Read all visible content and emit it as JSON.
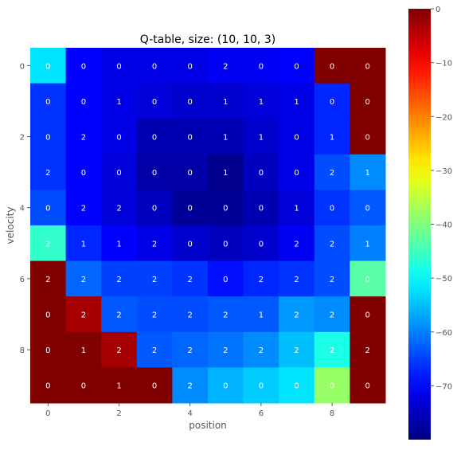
{
  "chart_data": {
    "type": "heatmap",
    "title": "Q-table, size: (10, 10, 3)",
    "xlabel": "position",
    "ylabel": "velocity",
    "x_ticks": [
      "0",
      "2",
      "4",
      "6",
      "8"
    ],
    "y_ticks": [
      "0",
      "2",
      "4",
      "6",
      "8"
    ],
    "colormap": "jet",
    "color_range": [
      -80,
      0
    ],
    "colorbar_ticks": [
      "0",
      "−10",
      "−20",
      "−30",
      "−40",
      "−50",
      "−60",
      "−70"
    ],
    "colorbar_tick_values": [
      0,
      -10,
      -20,
      -30,
      -40,
      -50,
      -60,
      -70
    ],
    "rows": 10,
    "cols": 10,
    "cell_labels": [
      [
        "0",
        "0",
        "0",
        "0",
        "0",
        "2",
        "0",
        "0",
        "0",
        "0"
      ],
      [
        "0",
        "0",
        "1",
        "0",
        "0",
        "1",
        "1",
        "1",
        "0",
        "0"
      ],
      [
        "0",
        "2",
        "0",
        "0",
        "0",
        "1",
        "1",
        "0",
        "1",
        "0"
      ],
      [
        "2",
        "0",
        "0",
        "0",
        "0",
        "1",
        "0",
        "0",
        "2",
        "1"
      ],
      [
        "0",
        "2",
        "2",
        "0",
        "0",
        "0",
        "0",
        "1",
        "0",
        "0"
      ],
      [
        "2",
        "1",
        "1",
        "2",
        "0",
        "0",
        "0",
        "2",
        "2",
        "1"
      ],
      [
        "2",
        "2",
        "2",
        "2",
        "2",
        "0",
        "2",
        "2",
        "2",
        "0"
      ],
      [
        "0",
        "2",
        "2",
        "2",
        "2",
        "2",
        "1",
        "2",
        "2",
        "0"
      ],
      [
        "0",
        "1",
        "2",
        "2",
        "2",
        "2",
        "2",
        "2",
        "2",
        "2"
      ],
      [
        "0",
        "0",
        "1",
        "0",
        "2",
        "0",
        "0",
        "0",
        "0",
        "0"
      ]
    ],
    "values": [
      [
        -52,
        -70,
        -72,
        -72,
        -72,
        -71,
        -71,
        -70,
        0,
        0
      ],
      [
        -66,
        -70,
        -72,
        -73,
        -74,
        -74,
        -73,
        -72,
        -67,
        0
      ],
      [
        -66,
        -70,
        -72,
        -76,
        -76,
        -76,
        -74,
        -72,
        -67,
        0
      ],
      [
        -66,
        -70,
        -73,
        -77,
        -77,
        -79,
        -75,
        -72,
        -64,
        -59
      ],
      [
        -64,
        -70,
        -73,
        -75,
        -78,
        -78,
        -76,
        -73,
        -66,
        -63
      ],
      [
        -46,
        -67,
        -70,
        -72,
        -74,
        -75,
        -74,
        -71,
        -64,
        -60
      ],
      [
        0,
        -62,
        -65,
        -65,
        -66,
        -69,
        -67,
        -66,
        -64,
        -43
      ],
      [
        0,
        -3,
        -63,
        -64,
        -64,
        -63,
        -63,
        -58,
        -59,
        0
      ],
      [
        0,
        0,
        -3,
        -63,
        -62,
        -61,
        -59,
        -55,
        -48,
        0
      ],
      [
        0,
        0,
        0,
        0,
        -59,
        -56,
        -54,
        -52,
        -38,
        0
      ]
    ]
  }
}
